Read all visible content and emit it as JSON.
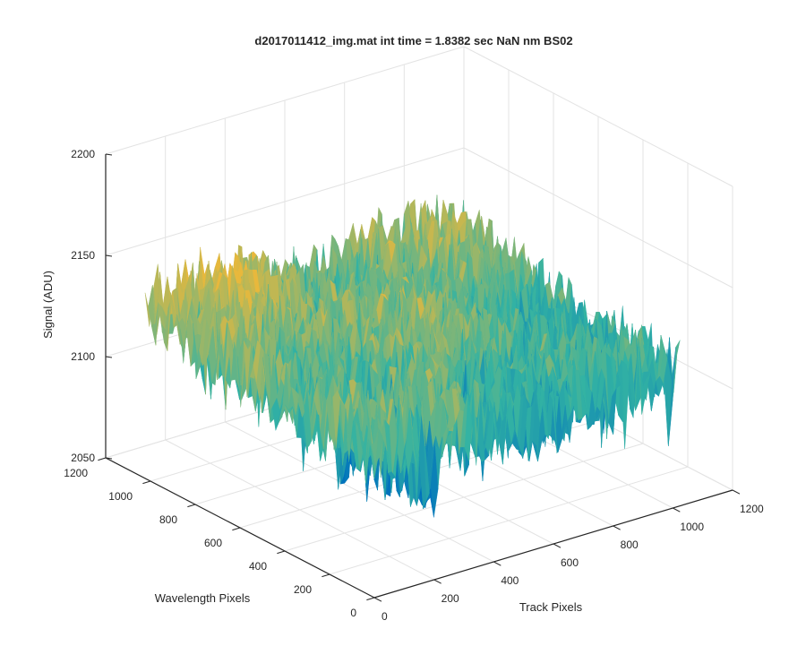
{
  "chart_data": {
    "type": "surface",
    "title": "d2017011412_img.mat int time = 1.8382 sec  NaN nm BS02",
    "xlabel": "Track Pixels",
    "ylabel": "Wavelength Pixels",
    "zlabel": "Signal (ADU)",
    "xlim": [
      0,
      1200
    ],
    "ylim": [
      0,
      1200
    ],
    "zlim": [
      2050,
      2200
    ],
    "x_ticks": [
      "0",
      "200",
      "400",
      "600",
      "800",
      "1000",
      "1200"
    ],
    "y_ticks": [
      "0",
      "200",
      "400",
      "600",
      "800",
      "1000",
      "1200"
    ],
    "z_ticks": [
      "2050",
      "2100",
      "2150",
      "2200"
    ],
    "grid": true,
    "colormap": "parula",
    "data_extent": {
      "x": [
        0,
        1024
      ],
      "y": [
        0,
        1024
      ]
    },
    "surface_level_range": [
      2050,
      2175
    ],
    "surface_typical_range": [
      2090,
      2145
    ],
    "colors": {
      "low": "#0072bd",
      "mid": "#33b3a3",
      "high": "#e8b83c",
      "axes": "#262626",
      "grid": "#e3e3e3"
    }
  }
}
